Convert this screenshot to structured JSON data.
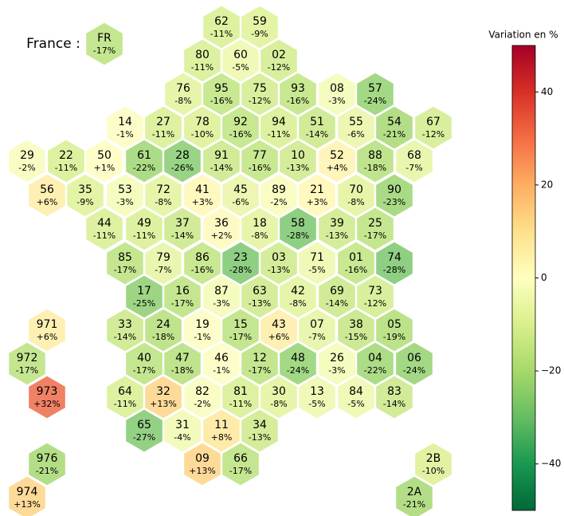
{
  "chart_data": {
    "type": "hexmap",
    "annotation": "France :",
    "colorbar_label": "Variation en %",
    "colormap": [
      "#006837",
      "#1a9850",
      "#66bd63",
      "#a6d96a",
      "#d9ef8b",
      "#ffffbf",
      "#fee08b",
      "#fdae61",
      "#f46d43",
      "#d73027",
      "#a50026"
    ],
    "ylim": [
      -50,
      50
    ],
    "yticks": [
      {
        "value": -40,
        "label": "−40"
      },
      {
        "value": -20,
        "label": "−20"
      },
      0,
      20,
      40
    ],
    "categories": [
      "FR",
      "62",
      "59",
      "80",
      "60",
      "02",
      "76",
      "95",
      "75",
      "93",
      "08",
      "57",
      "14",
      "27",
      "78",
      "92",
      "94",
      "51",
      "55",
      "54",
      "67",
      "29",
      "22",
      "50",
      "61",
      "28",
      "91",
      "77",
      "10",
      "52",
      "88",
      "68",
      "56",
      "35",
      "53",
      "72",
      "41",
      "45",
      "89",
      "21",
      "70",
      "90",
      "44",
      "49",
      "37",
      "36",
      "18",
      "58",
      "39",
      "25",
      "85",
      "79",
      "86",
      "23",
      "03",
      "71",
      "01",
      "74",
      "17",
      "16",
      "87",
      "63",
      "42",
      "69",
      "73",
      "971",
      "33",
      "24",
      "19",
      "15",
      "43",
      "07",
      "38",
      "05",
      "972",
      "40",
      "47",
      "46",
      "12",
      "48",
      "26",
      "04",
      "06",
      "973",
      "64",
      "32",
      "82",
      "81",
      "30",
      "13",
      "84",
      "83",
      "65",
      "31",
      "11",
      "34",
      "976",
      "09",
      "66",
      "2B",
      "974",
      "2A"
    ],
    "values": [
      -17,
      -11,
      -9,
      -11,
      -5,
      -12,
      -8,
      -16,
      -12,
      -16,
      -3,
      -24,
      -1,
      -11,
      -10,
      -16,
      -11,
      -14,
      -6,
      -21,
      -12,
      -2,
      -11,
      1,
      -22,
      -26,
      -14,
      -16,
      -13,
      4,
      -18,
      -7,
      6,
      -9,
      -3,
      -8,
      3,
      -6,
      -2,
      3,
      -8,
      -23,
      -11,
      -11,
      -14,
      2,
      -8,
      -28,
      -13,
      -17,
      -17,
      -7,
      -16,
      -28,
      -13,
      -5,
      -16,
      -28,
      -25,
      -17,
      -3,
      -13,
      -8,
      -14,
      -12,
      6,
      -14,
      -18,
      -1,
      -17,
      6,
      -7,
      -15,
      -19,
      -17,
      -17,
      -18,
      -1,
      -17,
      -24,
      -3,
      -22,
      -24,
      32,
      -11,
      13,
      -2,
      -11,
      -8,
      -5,
      -5,
      -14,
      -27,
      -4,
      8,
      -13,
      -21,
      13,
      -17,
      -10,
      13,
      -21
    ],
    "value_labels": [
      "-17%",
      "-11%",
      "-9%",
      "-11%",
      "-5%",
      "-12%",
      "-8%",
      "-16%",
      "-12%",
      "-16%",
      "-3%",
      "-24%",
      "-1%",
      "-11%",
      "-10%",
      "-16%",
      "-11%",
      "-14%",
      "-6%",
      "-21%",
      "-12%",
      "-2%",
      "-11%",
      "+1%",
      "-22%",
      "-26%",
      "-14%",
      "-16%",
      "-13%",
      "+4%",
      "-18%",
      "-7%",
      "+6%",
      "-9%",
      "-3%",
      "-8%",
      "+3%",
      "-6%",
      "-2%",
      "+3%",
      "-8%",
      "-23%",
      "-11%",
      "-11%",
      "-14%",
      "+2%",
      "-8%",
      "-28%",
      "-13%",
      "-17%",
      "-17%",
      "-7%",
      "-16%",
      "-28%",
      "-13%",
      "-5%",
      "-16%",
      "-28%",
      "-25%",
      "-17%",
      "-3%",
      "-13%",
      "-8%",
      "-14%",
      "-12%",
      "+6%",
      "-14%",
      "-18%",
      "-1%",
      "-17%",
      "+6%",
      "-7%",
      "-15%",
      "-19%",
      "-17%",
      "-17%",
      "-18%",
      "-1%",
      "-17%",
      "-24%",
      "-3%",
      "-22%",
      "-24%",
      "+32%",
      "-11%",
      "+13%",
      "-2%",
      "-11%",
      "-8%",
      "-5%",
      "-5%",
      "-14%",
      "-27%",
      "-4%",
      "+8%",
      "-13%",
      "-21%",
      "+13%",
      "-17%",
      "-10%",
      "+13%",
      "-21%"
    ]
  }
}
